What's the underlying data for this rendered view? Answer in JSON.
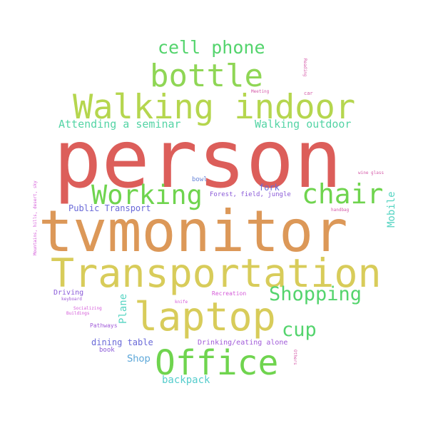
{
  "words": [
    {
      "text": "person",
      "color": "#dc5e5a"
    },
    {
      "text": "tvmonitor",
      "color": "#dc9858"
    },
    {
      "text": "Transportation",
      "color": "#d8cc5a"
    },
    {
      "text": "Walking indoor",
      "color": "#b5d64e"
    },
    {
      "text": "laptop",
      "color": "#d8cc5a"
    },
    {
      "text": "bottle",
      "color": "#8fd655"
    },
    {
      "text": "Office",
      "color": "#6fd44e"
    },
    {
      "text": "Working",
      "color": "#6fd44e"
    },
    {
      "text": "chair",
      "color": "#6fd44e"
    },
    {
      "text": "Shopping",
      "color": "#54d46d"
    },
    {
      "text": "cup",
      "color": "#54d46d"
    },
    {
      "text": "cell phone",
      "color": "#54d46d"
    },
    {
      "text": "Attending a seminar",
      "color": "#54d4a5"
    },
    {
      "text": "Walking outdoor",
      "color": "#54d4a5"
    },
    {
      "text": "Mobile",
      "color": "#54d4c2"
    },
    {
      "text": "Plane",
      "color": "#54d4c2"
    },
    {
      "text": "backpack",
      "color": "#54cccc"
    },
    {
      "text": "Shop",
      "color": "#5aa6d8"
    },
    {
      "text": "Public Transport",
      "color": "#6a6ad8"
    },
    {
      "text": "dining table",
      "color": "#6a6ad8"
    },
    {
      "text": "fork",
      "color": "#6a6ad8"
    },
    {
      "text": "Driving",
      "color": "#8a5ad8"
    },
    {
      "text": "Drinking/eating alone",
      "color": "#a05ad8"
    },
    {
      "text": "bowl",
      "color": "#6a86d8"
    },
    {
      "text": "Forest, field, jungle",
      "color": "#8a5ad8"
    },
    {
      "text": "book",
      "color": "#8a5ad8"
    },
    {
      "text": "Pathways",
      "color": "#a05ad8"
    },
    {
      "text": "Recreation",
      "color": "#d45ad8"
    },
    {
      "text": "keyboard",
      "color": "#a05ad8"
    },
    {
      "text": "knife",
      "color": "#d45ad8"
    },
    {
      "text": "Socializing",
      "color": "#d45ad8"
    },
    {
      "text": "Buildings",
      "color": "#d45ad8"
    },
    {
      "text": "Mountains, hills, desert, sky",
      "color": "#d45ad8"
    },
    {
      "text": "wine glass",
      "color": "#d45aa8"
    },
    {
      "text": "handbag",
      "color": "#d45aa8"
    },
    {
      "text": "Meeting",
      "color": "#d45aa8"
    },
    {
      "text": "car",
      "color": "#d45aa8"
    },
    {
      "text": "Reading",
      "color": "#d45aa8"
    },
    {
      "text": "Others",
      "color": "#d45aa8"
    }
  ]
}
